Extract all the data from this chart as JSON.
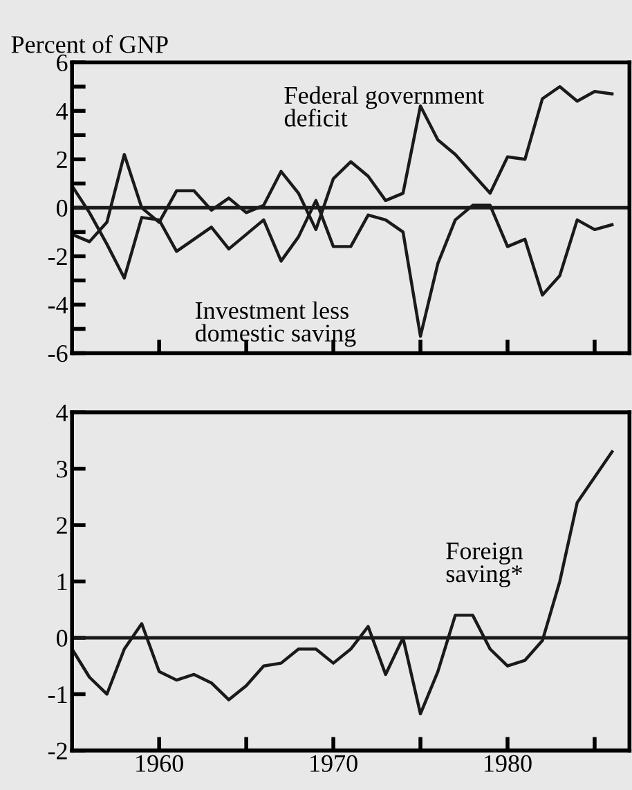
{
  "chart_data": [
    {
      "type": "line",
      "ylabel": "Percent of GNP",
      "x": [
        1955,
        1956,
        1957,
        1958,
        1959,
        1960,
        1961,
        1962,
        1963,
        1964,
        1965,
        1966,
        1967,
        1968,
        1969,
        1970,
        1971,
        1972,
        1973,
        1974,
        1975,
        1976,
        1977,
        1978,
        1979,
        1980,
        1981,
        1982,
        1983,
        1984,
        1985,
        1986
      ],
      "series": [
        {
          "name": "Federal government\ndeficit",
          "color": "#1a1a1a",
          "values": [
            -1.1,
            -1.4,
            -0.6,
            2.2,
            0.0,
            -0.6,
            0.7,
            0.7,
            -0.1,
            0.4,
            -0.2,
            0.1,
            1.5,
            0.6,
            -0.9,
            1.2,
            1.9,
            1.3,
            0.3,
            0.6,
            4.2,
            2.8,
            2.2,
            1.4,
            0.6,
            2.1,
            2.0,
            4.5,
            5.0,
            4.4,
            4.8,
            4.7
          ]
        },
        {
          "name": "Investment less\ndomestic saving",
          "color": "#1a1a1a",
          "values": [
            0.9,
            -0.2,
            -1.5,
            -2.9,
            -0.4,
            -0.5,
            -1.8,
            -1.3,
            -0.8,
            -1.7,
            -1.1,
            -0.5,
            -2.2,
            -1.2,
            0.3,
            -1.6,
            -1.6,
            -0.3,
            -0.5,
            -1.0,
            -5.3,
            -2.3,
            -0.5,
            0.1,
            0.1,
            -1.6,
            -1.3,
            -3.6,
            -2.8,
            -0.5,
            -0.9,
            -0.7
          ]
        }
      ],
      "xlim": [
        1955,
        1987
      ],
      "ylim": [
        -6,
        6
      ],
      "xticks": [
        {
          "value": 1960,
          "label": null
        },
        {
          "value": 1965,
          "label": null
        },
        {
          "value": 1970,
          "label": null
        },
        {
          "value": 1975,
          "label": null
        },
        {
          "value": 1980,
          "label": null
        },
        {
          "value": 1985,
          "label": null
        }
      ],
      "yticks": [
        -6,
        {
          "value": -5,
          "label": null
        },
        -4,
        {
          "value": -3,
          "label": null
        },
        -2,
        {
          "value": -1,
          "label": null
        },
        0,
        {
          "value": 1,
          "label": null
        },
        2,
        {
          "value": 3,
          "label": null
        },
        4,
        {
          "value": 5,
          "label": null
        },
        6
      ],
      "ref_lines": [
        {
          "axis": "y",
          "value": 0
        }
      ],
      "tick_labels": "y",
      "grid": false,
      "legend": false,
      "line_style": "solid",
      "marker": "none"
    },
    {
      "type": "line",
      "x": [
        1955,
        1956,
        1957,
        1958,
        1959,
        1960,
        1961,
        1962,
        1963,
        1964,
        1965,
        1966,
        1967,
        1968,
        1969,
        1970,
        1971,
        1972,
        1973,
        1974,
        1975,
        1976,
        1977,
        1978,
        1979,
        1980,
        1981,
        1982,
        1983,
        1984,
        1985,
        1986
      ],
      "series": [
        {
          "name": "Foreign\nsaving*",
          "color": "#1a1a1a",
          "values": [
            -0.2,
            -0.7,
            -1.0,
            -0.2,
            0.25,
            -0.6,
            -0.75,
            -0.65,
            -0.8,
            -1.1,
            -0.85,
            -0.5,
            -0.45,
            -0.2,
            -0.2,
            -0.45,
            -0.2,
            0.2,
            -0.65,
            0.0,
            -1.35,
            -0.6,
            0.4,
            0.4,
            -0.2,
            -0.5,
            -0.4,
            -0.05,
            1.0,
            2.4,
            2.85,
            3.3
          ]
        }
      ],
      "xlim": [
        1955,
        1987
      ],
      "ylim": [
        -2,
        4
      ],
      "xticks": [
        1960,
        {
          "value": 1965,
          "label": null
        },
        1970,
        {
          "value": 1975,
          "label": null
        },
        1980,
        {
          "value": 1985,
          "label": null
        }
      ],
      "yticks": [
        -2,
        -1,
        0,
        1,
        2,
        3,
        4
      ],
      "ref_lines": [
        {
          "axis": "y",
          "value": 0
        }
      ],
      "grid": false,
      "legend": false,
      "line_style": "solid",
      "marker": "none"
    }
  ]
}
